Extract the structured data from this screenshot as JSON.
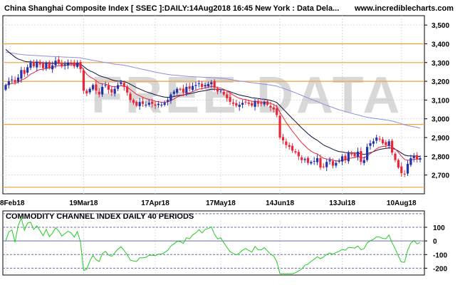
{
  "header": {
    "title": "China Shanghai Composite Index [ SSEC ]:DAILY:14Aug2018 16:45 New York : Data Dela...",
    "site": "www.incrediblecharts.com"
  },
  "watermark": "FREE DATA",
  "colors": {
    "frame": "#000000",
    "grid": "#d8d8e8",
    "orange": "#f2a23a",
    "red": "#e8283a",
    "blue": "#2233aa",
    "navy": "#101040",
    "lavender": "#8e8ee0",
    "green": "#22cc22",
    "panel_line": "#6a6aa8",
    "panel_dash": "#6a6aa8"
  },
  "chart_data": [
    {
      "type": "candlestick",
      "title": "China Shanghai Composite Index [ SSEC ]:DAILY:14Aug2018 16:45 New York : Data Dela...",
      "ylim": [
        2600,
        3550
      ],
      "yticks": [
        {
          "value": 3500,
          "label": "3,500"
        },
        {
          "value": 3400,
          "label": "3,400"
        },
        {
          "value": 3300,
          "label": "3,300"
        },
        {
          "value": 3200,
          "label": "3,200"
        },
        {
          "value": 3100,
          "label": "3,100"
        },
        {
          "value": 3000,
          "label": "3,000"
        },
        {
          "value": 2900,
          "label": "2,900"
        },
        {
          "value": 2800,
          "label": "2,800"
        },
        {
          "value": 2700,
          "label": "2,700"
        }
      ],
      "xticks": [
        {
          "index": 0,
          "label": "8Feb18"
        },
        {
          "index": 25,
          "label": "19Mar18"
        },
        {
          "index": 48,
          "label": "17Apr18"
        },
        {
          "index": 69,
          "label": "17May18"
        },
        {
          "index": 88,
          "label": "14Jun18"
        },
        {
          "index": 108,
          "label": "13Jul18"
        },
        {
          "index": 127,
          "label": "10Aug18"
        }
      ],
      "support_resistance_lines": [
        3400,
        3300,
        3200,
        2970,
        2635
      ],
      "closes": [
        3180,
        3200,
        3210,
        3195,
        3220,
        3260,
        3240,
        3275,
        3300,
        3280,
        3305,
        3290,
        3270,
        3300,
        3270,
        3285,
        3310,
        3300,
        3280,
        3290,
        3300,
        3295,
        3280,
        3300,
        3265,
        3150,
        3135,
        3160,
        3180,
        3150,
        3130,
        3170,
        3180,
        3155,
        3140,
        3160,
        3180,
        3195,
        3170,
        3140,
        3100,
        3085,
        3070,
        3090,
        3080,
        3075,
        3085,
        3080,
        3070,
        3080,
        3075,
        3085,
        3100,
        3130,
        3145,
        3160,
        3155,
        3140,
        3170,
        3160,
        3175,
        3180,
        3190,
        3170,
        3180,
        3185,
        3195,
        3165,
        3145,
        3150,
        3130,
        3110,
        3090,
        3080,
        3070,
        3075,
        3085,
        3090,
        3080,
        3070,
        3095,
        3080,
        3080,
        3090,
        3075,
        3060,
        3050,
        3020,
        2900,
        2885,
        2860,
        2850,
        2830,
        2820,
        2800,
        2780,
        2785,
        2765,
        2770,
        2775,
        2790,
        2740,
        2745,
        2770,
        2780,
        2750,
        2765,
        2775,
        2800,
        2780,
        2820,
        2810,
        2800,
        2825,
        2770,
        2780,
        2850,
        2870,
        2880,
        2900,
        2890,
        2870,
        2860,
        2880,
        2820,
        2780,
        2740,
        2710,
        2705,
        2760,
        2790,
        2800,
        2785,
        2790
      ],
      "series": [
        {
          "name": "EMA short",
          "color": "red"
        },
        {
          "name": "EMA medium",
          "color": "navy"
        },
        {
          "name": "EMA long",
          "color": "lavender"
        }
      ]
    },
    {
      "type": "line",
      "title": "COMMODITY CHANNEL INDEX DAILY 40 PERIODS",
      "ylim": [
        -250,
        220
      ],
      "yticks": [
        {
          "value": 100,
          "label": "100"
        },
        {
          "value": 0,
          "label": "0"
        },
        {
          "value": -100,
          "label": "-100"
        },
        {
          "value": -200,
          "label": "-200"
        }
      ],
      "reference_levels": [
        200,
        100,
        0,
        -100,
        -200
      ],
      "series": [
        {
          "name": "CCI 40",
          "color": "green"
        }
      ]
    }
  ]
}
